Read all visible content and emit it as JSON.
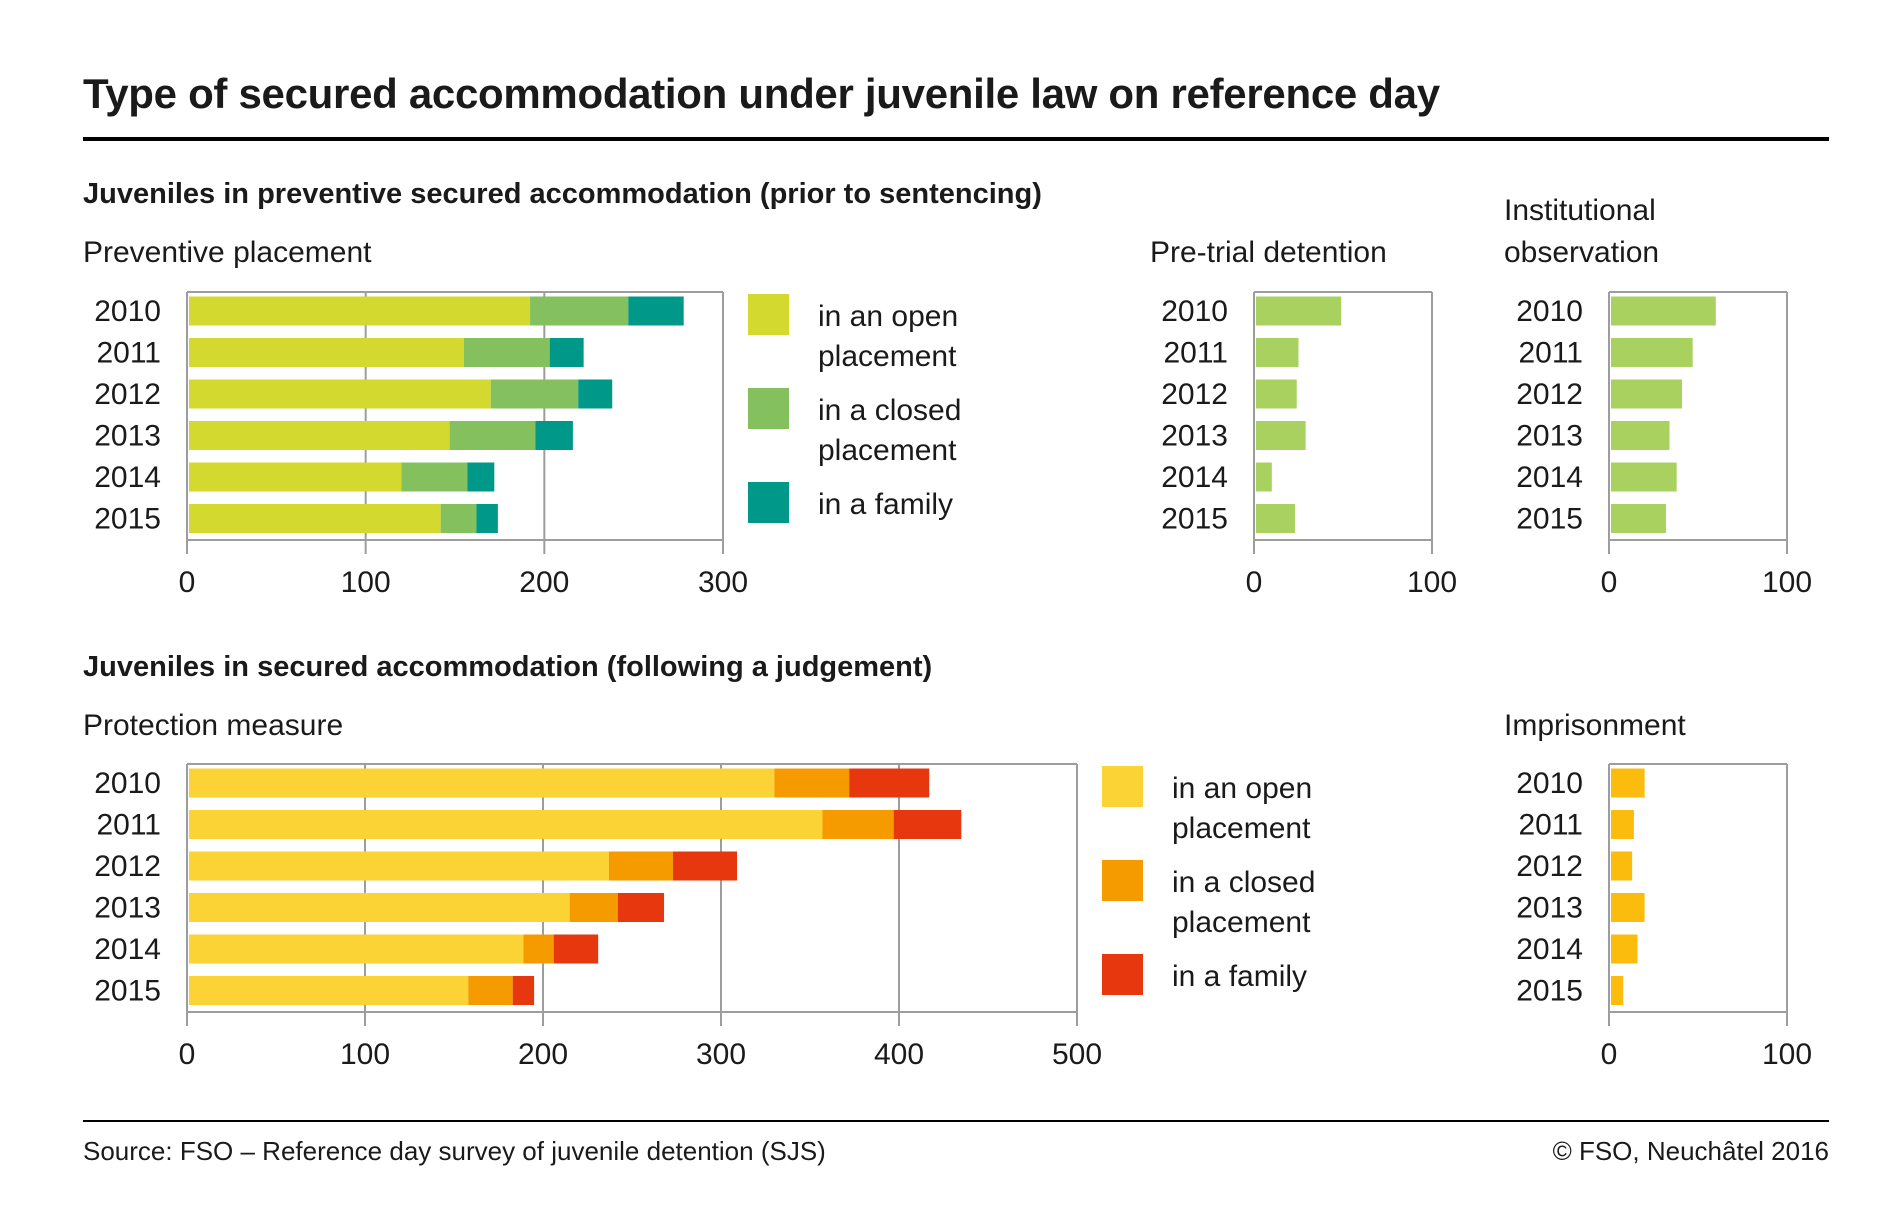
{
  "title": "Type of secured accommodation under juvenile law on reference day",
  "sections": {
    "preventive": "Juveniles in preventive secured accommodation (prior to sentencing)",
    "judgement": "Juveniles in secured accommodation (following a judgement)"
  },
  "footer": {
    "source": "Source: FSO – Reference day survey of juvenile detention (SJS)",
    "copyright": "© FSO, Neuchâtel 2016"
  },
  "colors": {
    "open_green": "#d3d92e",
    "closed_green": "#84c15e",
    "family_teal": "#009889",
    "single_green": "#a9d15f",
    "open_yellow": "#fcd334",
    "closed_orange": "#f59b00",
    "family_red": "#e6370e",
    "single_orange": "#fbbc0e",
    "grid": "#9d9d9d"
  },
  "chart_data": [
    {
      "id": "preventive_placement",
      "type": "bar",
      "orientation": "horizontal",
      "stacked": true,
      "title": "Preventive placement",
      "categories": [
        "2010",
        "2011",
        "2012",
        "2013",
        "2014",
        "2015"
      ],
      "series": [
        {
          "name": "in an open placement",
          "values": [
            192,
            155,
            170,
            147,
            120,
            142
          ]
        },
        {
          "name": "in a closed placement",
          "values": [
            55,
            48,
            49,
            48,
            37,
            20
          ]
        },
        {
          "name": "in a family",
          "values": [
            31,
            19,
            19,
            21,
            15,
            12
          ]
        }
      ],
      "xlim": [
        0,
        300
      ],
      "xticks": [
        0,
        100,
        200,
        300
      ],
      "grid": true,
      "legend": "right"
    },
    {
      "id": "pretrial_detention",
      "type": "bar",
      "orientation": "horizontal",
      "title": "Pre-trial detention",
      "categories": [
        "2010",
        "2011",
        "2012",
        "2013",
        "2014",
        "2015"
      ],
      "values": [
        49,
        25,
        24,
        29,
        10,
        23
      ],
      "xlim": [
        0,
        100
      ],
      "xticks": [
        0,
        100
      ],
      "grid": true
    },
    {
      "id": "institutional_observation",
      "type": "bar",
      "orientation": "horizontal",
      "title": "Institutional observation",
      "categories": [
        "2010",
        "2011",
        "2012",
        "2013",
        "2014",
        "2015"
      ],
      "values": [
        60,
        47,
        41,
        34,
        38,
        32
      ],
      "xlim": [
        0,
        100
      ],
      "xticks": [
        0,
        100
      ],
      "grid": true
    },
    {
      "id": "protection_measure",
      "type": "bar",
      "orientation": "horizontal",
      "stacked": true,
      "title": "Protection measure",
      "categories": [
        "2010",
        "2011",
        "2012",
        "2013",
        "2014",
        "2015"
      ],
      "series": [
        {
          "name": "in an open placement",
          "values": [
            330,
            357,
            237,
            215,
            189,
            158
          ]
        },
        {
          "name": "in a closed placement",
          "values": [
            42,
            40,
            36,
            27,
            17,
            25
          ]
        },
        {
          "name": "in a family",
          "values": [
            45,
            38,
            36,
            26,
            25,
            12
          ]
        }
      ],
      "xlim": [
        0,
        500
      ],
      "xticks": [
        0,
        100,
        200,
        300,
        400,
        500
      ],
      "grid": true,
      "legend": "right"
    },
    {
      "id": "imprisonment",
      "type": "bar",
      "orientation": "horizontal",
      "title": "Imprisonment",
      "categories": [
        "2010",
        "2011",
        "2012",
        "2013",
        "2014",
        "2015"
      ],
      "values": [
        20,
        14,
        13,
        20,
        16,
        8
      ],
      "xlim": [
        0,
        100
      ],
      "xticks": [
        0,
        100
      ],
      "grid": true
    }
  ]
}
